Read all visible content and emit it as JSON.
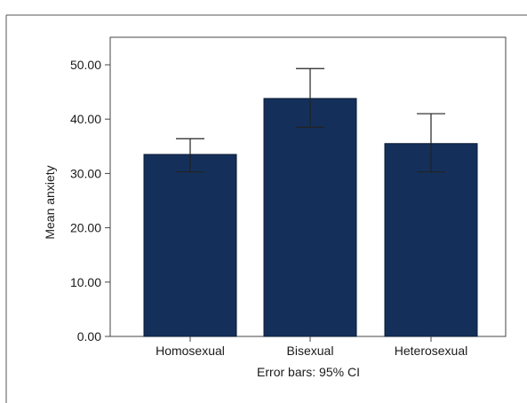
{
  "chart_data": {
    "type": "bar",
    "title": "",
    "xlabel": "",
    "ylabel": "Mean anxiety",
    "caption": "Error bars: 95% CI",
    "categories": [
      "Homosexual",
      "Bisexual",
      "Heterosexual"
    ],
    "values": [
      33.5,
      43.8,
      35.5
    ],
    "ci_low": [
      30.3,
      38.5,
      30.3
    ],
    "ci_high": [
      36.4,
      49.3,
      41.0
    ],
    "ylim": [
      0,
      55
    ],
    "yticks": [
      0,
      10,
      20,
      30,
      40,
      50
    ],
    "ytick_labels": [
      "0.00",
      "10.00",
      "20.00",
      "30.00",
      "40.00",
      "50.00"
    ],
    "bar_color": "#14305a",
    "grid": false,
    "legend": "none"
  }
}
